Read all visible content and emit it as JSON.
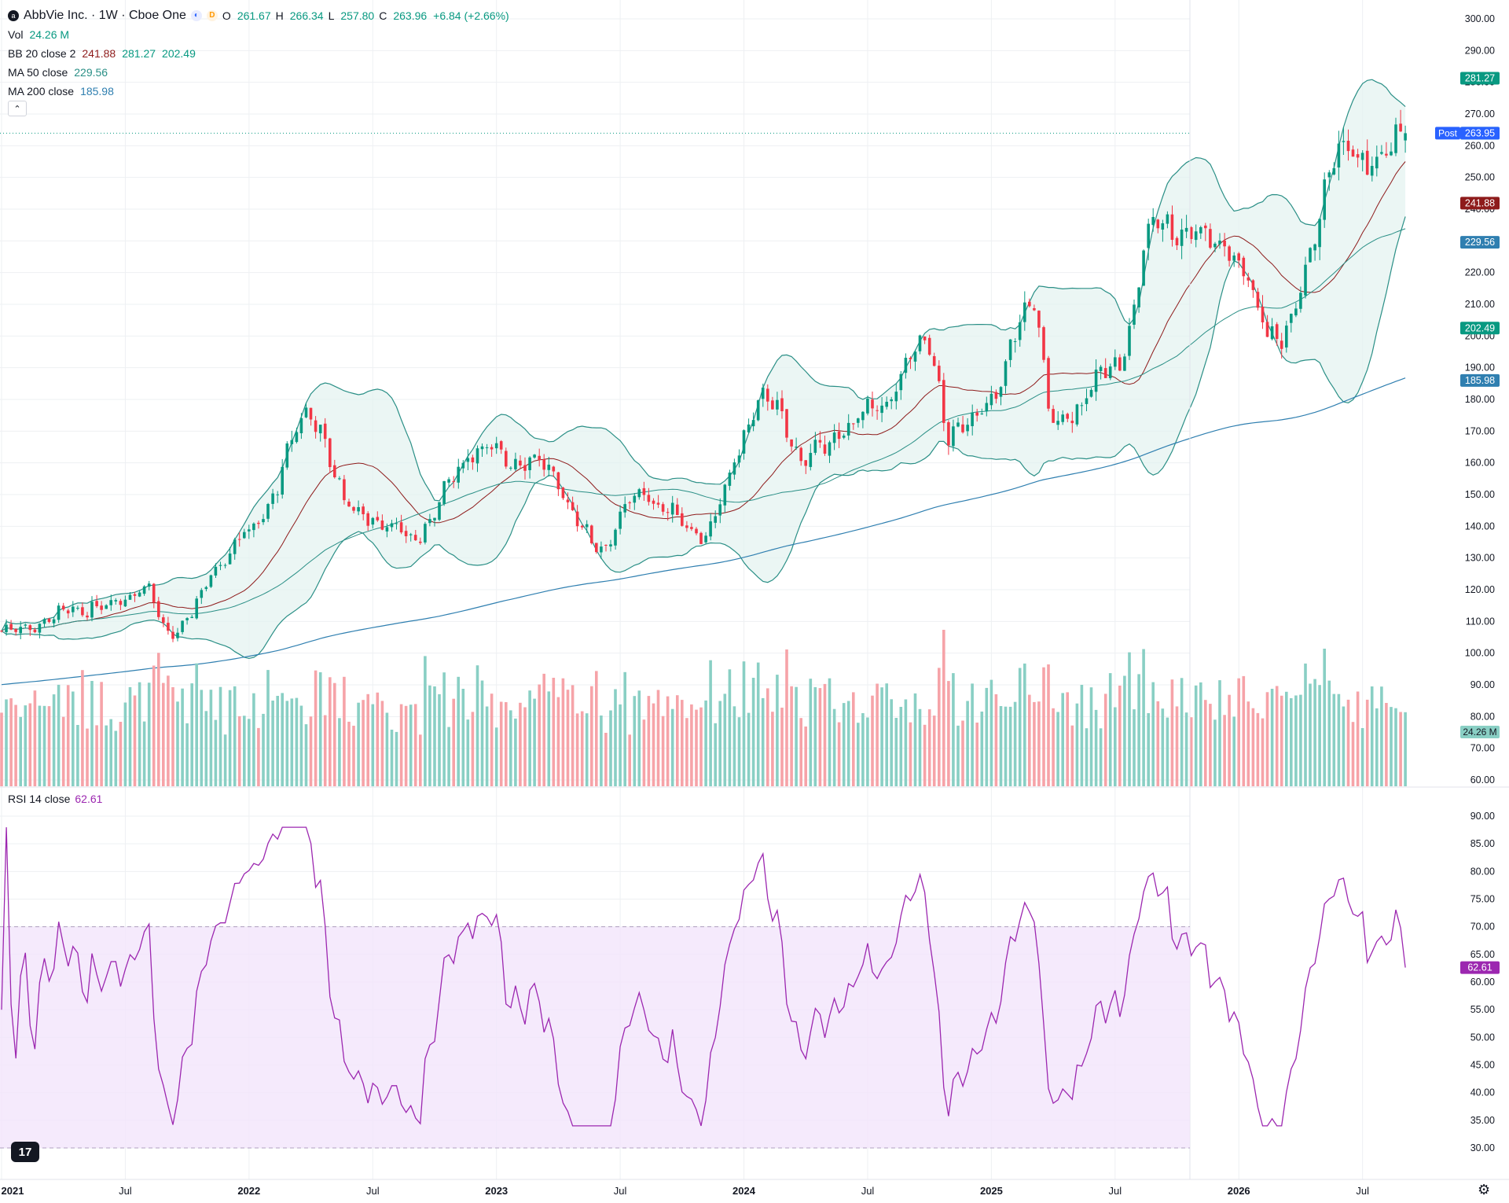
{
  "header": {
    "symbol_title": "AbbVie Inc. · 1W · Cboe One",
    "open_label": "O",
    "open": "261.67",
    "high_label": "H",
    "high": "266.34",
    "low_label": "L",
    "low": "257.80",
    "close_label": "C",
    "close": "263.96",
    "change": "+6.84 (+2.66%)",
    "delayed_badge": "D"
  },
  "indicators": {
    "vol_label": "Vol",
    "vol_value": "24.26 M",
    "bb_label": "BB 20 close 2",
    "bb_basis": "241.88",
    "bb_upper": "281.27",
    "bb_lower": "202.49",
    "ma50_label": "MA 50 close",
    "ma50_value": "229.56",
    "ma200_label": "MA 200 close",
    "ma200_value": "185.98",
    "rsi_label": "RSI 14 close",
    "rsi_value": "62.61"
  },
  "price_axis": {
    "ticks": [
      "300.00",
      "290.00",
      "280.00",
      "270.00",
      "260.00",
      "250.00",
      "240.00",
      "230.00",
      "220.00",
      "210.00",
      "200.00",
      "190.00",
      "180.00",
      "170.00",
      "160.00",
      "150.00",
      "140.00",
      "130.00",
      "120.00",
      "110.00",
      "100.00",
      "90.00",
      "80.00",
      "70.00",
      "60.00"
    ],
    "badges": [
      {
        "value": 281.27,
        "text": "281.27",
        "color": "#089981"
      },
      {
        "value": 263.96,
        "text": "263.96",
        "color": "#089981"
      },
      {
        "value": 263.95,
        "text": "263.95",
        "color": "#2962ff",
        "prefix": "Post"
      },
      {
        "value": 241.88,
        "text": "241.88",
        "color": "#8e1b1b"
      },
      {
        "value": 229.56,
        "text": "229.56",
        "color": "#2f7fb0"
      },
      {
        "value": 202.49,
        "text": "202.49",
        "color": "#089981"
      },
      {
        "value": 185.98,
        "text": "185.98",
        "color": "#2f7fb0"
      }
    ],
    "vol_badge": "24.26 M"
  },
  "rsi_axis": {
    "ticks": [
      "90.00",
      "85.00",
      "80.00",
      "75.00",
      "70.00",
      "65.00",
      "60.00",
      "55.00",
      "50.00",
      "45.00",
      "40.00",
      "35.00",
      "30.00"
    ],
    "badge": "62.61"
  },
  "time_axis": {
    "labels": [
      "2021",
      "Jul",
      "2022",
      "Jul",
      "2023",
      "Jul",
      "2024",
      "Jul",
      "2025",
      "Jul",
      "2026",
      "Jul"
    ]
  },
  "colors": {
    "up": "#089981",
    "down": "#f23645",
    "vol_up": "#89cfc4",
    "vol_down": "#f6a3a8",
    "bb_band": "#2a8f86",
    "bb_basis": "#8e1b1b",
    "bb_fill": "#e3f2ef",
    "ma50": "#2a8f86",
    "ma200": "#2f7fb0",
    "rsi_line": "#9c27b0",
    "rsi_fill": "#f3e5fb"
  },
  "branding": {
    "tv_logo": "17"
  },
  "chart_data": {
    "type": "candlestick",
    "symbol": "AbbVie Inc.",
    "interval": "1W",
    "x_range": [
      "2021-01",
      "2026-09"
    ],
    "y_range": [
      60,
      300
    ],
    "key_price_points": [
      {
        "date": "2021-01",
        "close": 107
      },
      {
        "date": "2021-06",
        "close": 115
      },
      {
        "date": "2021-08",
        "close": 121
      },
      {
        "date": "2021-09",
        "close": 106
      },
      {
        "date": "2022-01",
        "close": 138
      },
      {
        "date": "2022-04",
        "close": 175
      },
      {
        "date": "2022-06",
        "close": 145
      },
      {
        "date": "2022-09",
        "close": 137
      },
      {
        "date": "2022-12",
        "close": 164
      },
      {
        "date": "2023-03",
        "close": 160
      },
      {
        "date": "2023-06",
        "close": 134
      },
      {
        "date": "2023-08",
        "close": 150
      },
      {
        "date": "2023-11",
        "close": 138
      },
      {
        "date": "2024-02",
        "close": 180
      },
      {
        "date": "2024-04",
        "close": 162
      },
      {
        "date": "2024-07",
        "close": 175
      },
      {
        "date": "2024-10",
        "close": 197
      },
      {
        "date": "2024-11",
        "close": 168
      },
      {
        "date": "2025-01",
        "close": 180
      },
      {
        "date": "2025-03",
        "close": 212
      },
      {
        "date": "2025-04",
        "close": 172
      },
      {
        "date": "2025-07",
        "close": 190
      },
      {
        "date": "2025-09",
        "close": 236
      },
      {
        "date": "2025-12",
        "close": 230
      },
      {
        "date": "2026-03",
        "close": 200
      },
      {
        "date": "2026-06",
        "close": 258
      },
      {
        "date": "2026-08",
        "close": 255
      },
      {
        "date": "2026-09",
        "close": 263.96
      }
    ],
    "last_bar": {
      "open": 261.67,
      "high": 266.34,
      "low": 257.8,
      "close": 263.96
    },
    "bollinger": {
      "period": 20,
      "stddev": 2,
      "basis": 241.88,
      "upper": 281.27,
      "lower": 202.49
    },
    "ma50": 229.56,
    "ma200": 185.98,
    "volume_last": "24.26M",
    "rsi": {
      "period": 14,
      "last": 62.61,
      "upper_band": 70,
      "lower_band": 30,
      "y_range": [
        30,
        90
      ]
    }
  }
}
